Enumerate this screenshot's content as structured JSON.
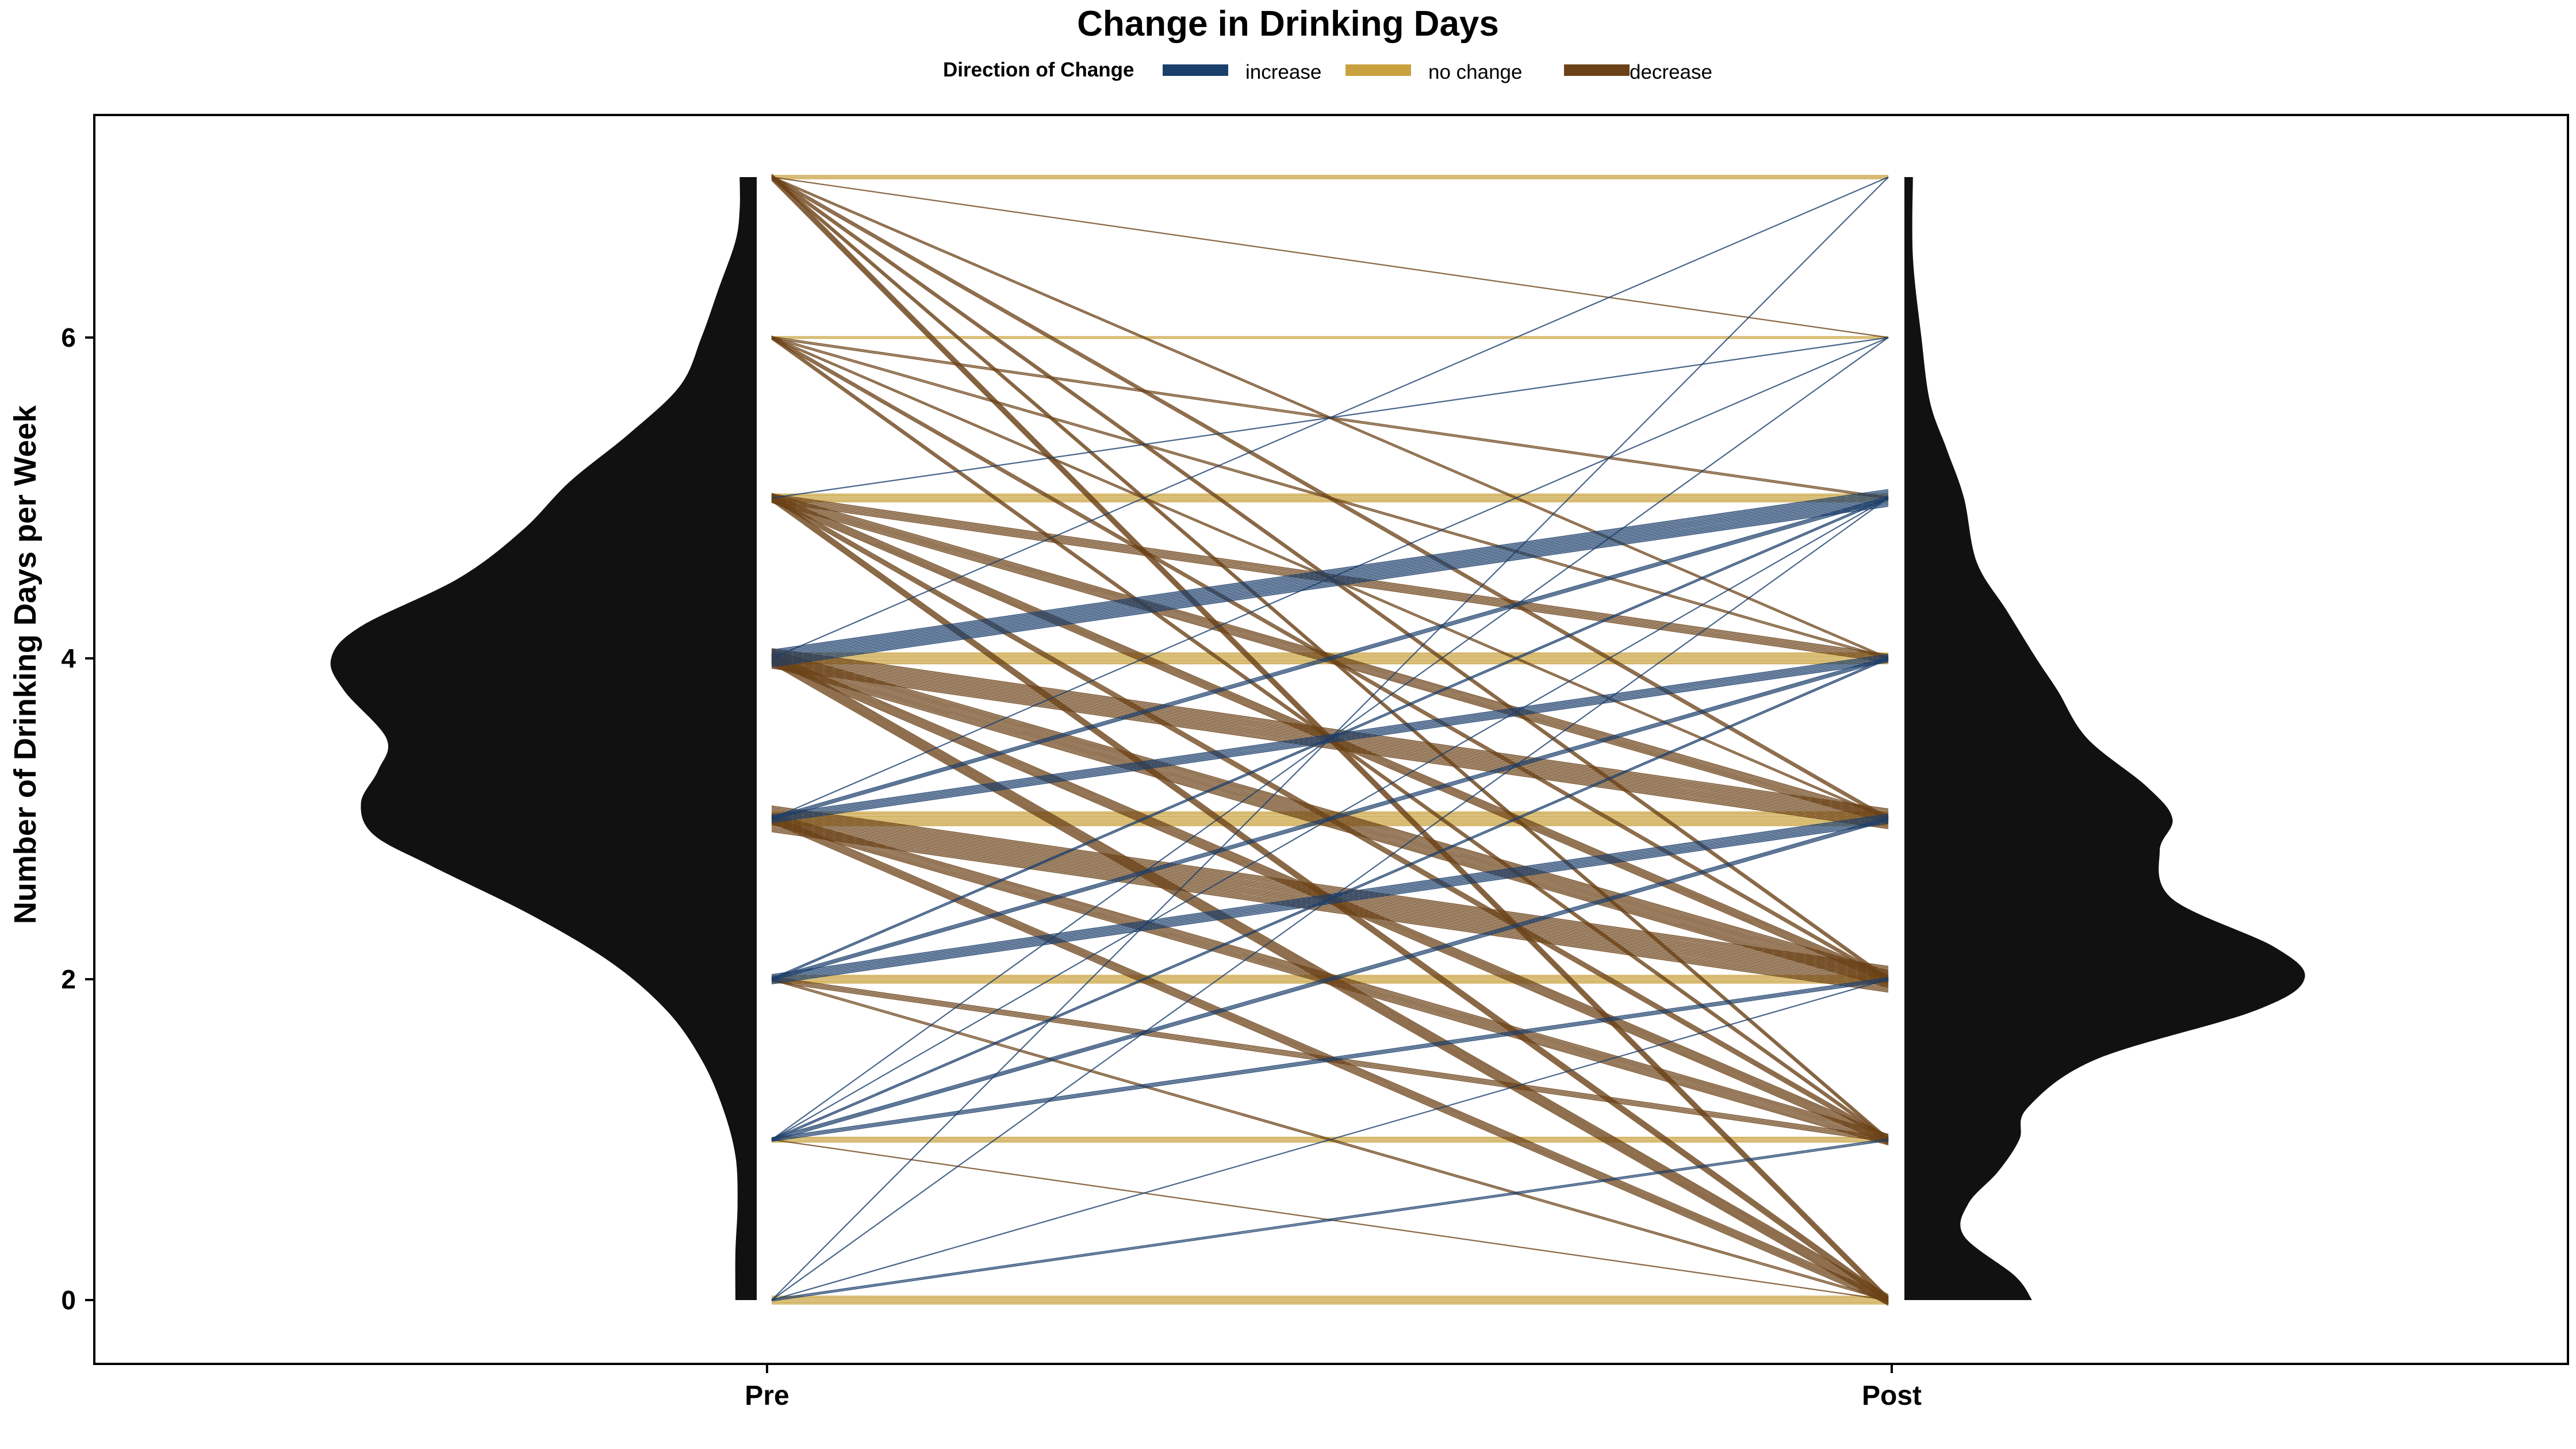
{
  "chart_data": {
    "type": "line",
    "title": "Change in Drinking Days",
    "ylabel": "Number of Drinking Days per Week",
    "xlabel": "",
    "categories": [
      "Pre",
      "Post"
    ],
    "ylim": [
      -0.4,
      7.4
    ],
    "yticks": [
      0,
      2,
      4,
      6
    ],
    "grid": false,
    "legend": {
      "position": "top",
      "title": "Direction of Change",
      "entries": [
        {
          "label": "increase",
          "color": "#1b3f6b"
        },
        {
          "label": "no change",
          "color": "#c9a23f"
        },
        {
          "label": "decrease",
          "color": "#6b4218"
        }
      ]
    },
    "colors": {
      "increase": "#1b3f6b",
      "no_change": "#c9a23f",
      "decrease": "#6b4218",
      "density": "#111111"
    },
    "density_pre": [
      {
        "y": 0.0,
        "d": 0.05
      },
      {
        "y": 0.3,
        "d": 0.05
      },
      {
        "y": 0.6,
        "d": 0.045
      },
      {
        "y": 0.9,
        "d": 0.05
      },
      {
        "y": 1.2,
        "d": 0.08
      },
      {
        "y": 1.5,
        "d": 0.13
      },
      {
        "y": 1.8,
        "d": 0.21
      },
      {
        "y": 2.1,
        "d": 0.34
      },
      {
        "y": 2.4,
        "d": 0.53
      },
      {
        "y": 2.7,
        "d": 0.76
      },
      {
        "y": 2.9,
        "d": 0.9
      },
      {
        "y": 3.1,
        "d": 0.93
      },
      {
        "y": 3.3,
        "d": 0.89
      },
      {
        "y": 3.5,
        "d": 0.87
      },
      {
        "y": 3.8,
        "d": 0.97
      },
      {
        "y": 4.0,
        "d": 1.0
      },
      {
        "y": 4.2,
        "d": 0.93
      },
      {
        "y": 4.5,
        "d": 0.7
      },
      {
        "y": 4.8,
        "d": 0.55
      },
      {
        "y": 5.1,
        "d": 0.44
      },
      {
        "y": 5.4,
        "d": 0.3
      },
      {
        "y": 5.7,
        "d": 0.18
      },
      {
        "y": 6.0,
        "d": 0.13
      },
      {
        "y": 6.3,
        "d": 0.09
      },
      {
        "y": 6.6,
        "d": 0.05
      },
      {
        "y": 6.8,
        "d": 0.04
      },
      {
        "y": 7.0,
        "d": 0.04
      }
    ],
    "density_post": [
      {
        "y": 0.0,
        "d": 0.3
      },
      {
        "y": 0.15,
        "d": 0.26
      },
      {
        "y": 0.4,
        "d": 0.14
      },
      {
        "y": 0.6,
        "d": 0.15
      },
      {
        "y": 0.8,
        "d": 0.22
      },
      {
        "y": 1.0,
        "d": 0.27
      },
      {
        "y": 1.2,
        "d": 0.29
      },
      {
        "y": 1.5,
        "d": 0.45
      },
      {
        "y": 1.8,
        "d": 0.82
      },
      {
        "y": 2.0,
        "d": 0.94
      },
      {
        "y": 2.2,
        "d": 0.87
      },
      {
        "y": 2.5,
        "d": 0.63
      },
      {
        "y": 2.8,
        "d": 0.6
      },
      {
        "y": 3.0,
        "d": 0.63
      },
      {
        "y": 3.2,
        "d": 0.57
      },
      {
        "y": 3.5,
        "d": 0.43
      },
      {
        "y": 3.8,
        "d": 0.36
      },
      {
        "y": 4.0,
        "d": 0.31
      },
      {
        "y": 4.3,
        "d": 0.24
      },
      {
        "y": 4.6,
        "d": 0.17
      },
      {
        "y": 5.0,
        "d": 0.14
      },
      {
        "y": 5.3,
        "d": 0.1
      },
      {
        "y": 5.6,
        "d": 0.06
      },
      {
        "y": 6.0,
        "d": 0.04
      },
      {
        "y": 6.5,
        "d": 0.02
      },
      {
        "y": 7.0,
        "d": 0.02
      }
    ],
    "series": [
      {
        "name": "increase",
        "pairs": [
          {
            "pre": 0,
            "post": 1,
            "n": 2
          },
          {
            "pre": 0,
            "post": 2,
            "n": 1
          },
          {
            "pre": 0,
            "post": 5,
            "n": 1
          },
          {
            "pre": 0,
            "post": 7,
            "n": 1
          },
          {
            "pre": 1,
            "post": 2,
            "n": 3
          },
          {
            "pre": 1,
            "post": 3,
            "n": 3
          },
          {
            "pre": 1,
            "post": 4,
            "n": 2
          },
          {
            "pre": 1,
            "post": 5,
            "n": 1
          },
          {
            "pre": 1,
            "post": 6,
            "n": 1
          },
          {
            "pre": 2,
            "post": 3,
            "n": 7
          },
          {
            "pre": 2,
            "post": 4,
            "n": 3
          },
          {
            "pre": 2,
            "post": 5,
            "n": 2
          },
          {
            "pre": 3,
            "post": 4,
            "n": 6
          },
          {
            "pre": 3,
            "post": 5,
            "n": 3
          },
          {
            "pre": 3,
            "post": 6,
            "n": 1
          },
          {
            "pre": 4,
            "post": 5,
            "n": 12
          },
          {
            "pre": 4,
            "post": 7,
            "n": 1
          },
          {
            "pre": 5,
            "post": 6,
            "n": 1
          }
        ]
      },
      {
        "name": "no change",
        "pairs": [
          {
            "pre": 0,
            "post": 0,
            "n": 6
          },
          {
            "pre": 1,
            "post": 1,
            "n": 4
          },
          {
            "pre": 2,
            "post": 2,
            "n": 6
          },
          {
            "pre": 3,
            "post": 3,
            "n": 10
          },
          {
            "pre": 4,
            "post": 4,
            "n": 8
          },
          {
            "pre": 5,
            "post": 5,
            "n": 6
          },
          {
            "pre": 6,
            "post": 6,
            "n": 2
          },
          {
            "pre": 7,
            "post": 7,
            "n": 3
          }
        ]
      },
      {
        "name": "decrease",
        "pairs": [
          {
            "pre": 1,
            "post": 0,
            "n": 1
          },
          {
            "pre": 2,
            "post": 0,
            "n": 2
          },
          {
            "pre": 2,
            "post": 1,
            "n": 4
          },
          {
            "pre": 3,
            "post": 0,
            "n": 6
          },
          {
            "pre": 3,
            "post": 1,
            "n": 8
          },
          {
            "pre": 3,
            "post": 2,
            "n": 18
          },
          {
            "pre": 4,
            "post": 0,
            "n": 8
          },
          {
            "pre": 4,
            "post": 1,
            "n": 7
          },
          {
            "pre": 4,
            "post": 2,
            "n": 12
          },
          {
            "pre": 4,
            "post": 3,
            "n": 14
          },
          {
            "pre": 5,
            "post": 0,
            "n": 5
          },
          {
            "pre": 5,
            "post": 1,
            "n": 4
          },
          {
            "pre": 5,
            "post": 2,
            "n": 6
          },
          {
            "pre": 5,
            "post": 3,
            "n": 7
          },
          {
            "pre": 5,
            "post": 4,
            "n": 6
          },
          {
            "pre": 6,
            "post": 1,
            "n": 3
          },
          {
            "pre": 6,
            "post": 2,
            "n": 3
          },
          {
            "pre": 6,
            "post": 3,
            "n": 2
          },
          {
            "pre": 6,
            "post": 4,
            "n": 2
          },
          {
            "pre": 6,
            "post": 5,
            "n": 2
          },
          {
            "pre": 7,
            "post": 0,
            "n": 5
          },
          {
            "pre": 7,
            "post": 1,
            "n": 3
          },
          {
            "pre": 7,
            "post": 2,
            "n": 3
          },
          {
            "pre": 7,
            "post": 3,
            "n": 3
          },
          {
            "pre": 7,
            "post": 4,
            "n": 2
          },
          {
            "pre": 7,
            "post": 6,
            "n": 1
          }
        ]
      }
    ]
  }
}
